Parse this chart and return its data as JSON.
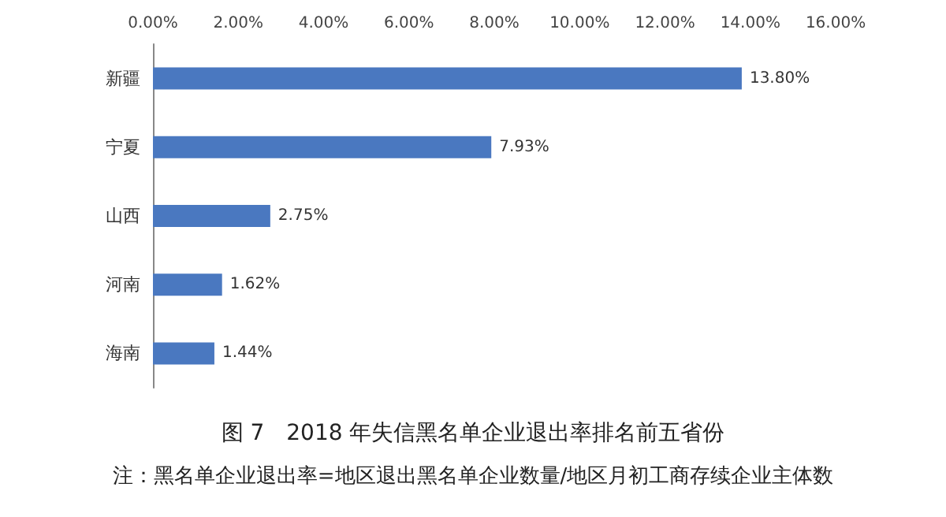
{
  "chart_data": {
    "type": "bar",
    "orientation": "horizontal",
    "title": "图 7　2018 年失信黑名单企业退出率排名前五省份",
    "annotations": [
      "注：黑名单企业退出率=地区退出黑名单企业数量/地区月初工商存续企业主体数"
    ],
    "categories": [
      "新疆",
      "宁夏",
      "山西",
      "河南",
      "海南"
    ],
    "values": [
      13.8,
      7.93,
      2.75,
      1.62,
      1.44
    ],
    "value_labels": [
      "13.80%",
      "7.93%",
      "2.75%",
      "1.62%",
      "1.44%"
    ],
    "color": "#4a78c0",
    "xlim": [
      0,
      16
    ],
    "xticks": [
      {
        "value": 0,
        "label": "0.00%"
      },
      {
        "value": 2,
        "label": "2.00%"
      },
      {
        "value": 4,
        "label": "4.00%"
      },
      {
        "value": 6,
        "label": "6.00%"
      },
      {
        "value": 8,
        "label": "8.00%"
      },
      {
        "value": 10,
        "label": "10.00%"
      },
      {
        "value": 12,
        "label": "12.00%"
      },
      {
        "value": 14,
        "label": "14.00%"
      },
      {
        "value": 16,
        "label": "16.00%"
      }
    ],
    "grid": false
  }
}
